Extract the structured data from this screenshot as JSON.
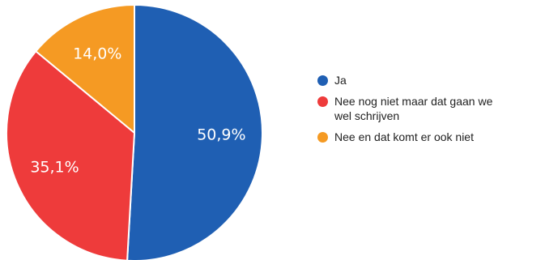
{
  "chart_data": {
    "type": "pie",
    "categories": [
      "Ja",
      "Nee nog niet maar dat gaan we wel schrijven",
      "Nee en dat komt er ook niet"
    ],
    "values": [
      50.9,
      35.1,
      14.0
    ],
    "labels": [
      "50,9%",
      "35,1%",
      "14,0%"
    ],
    "colors": [
      "#1f5fb3",
      "#ee3b3b",
      "#f59a23"
    ],
    "legend_position": "right"
  }
}
